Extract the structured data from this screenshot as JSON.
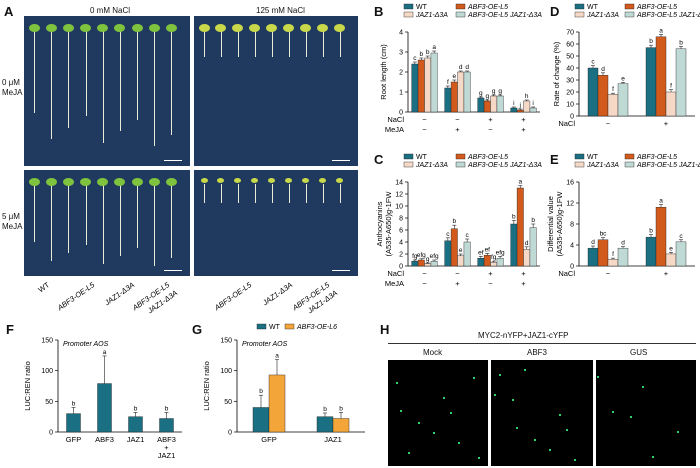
{
  "colors": {
    "wt": "#1b6f83",
    "oe": "#d25a1c",
    "jaz": "#f6d8c7",
    "dbl": "#bfd9d5",
    "orange": "#f3a53a",
    "photo": "#1f3a5e",
    "gfp": "#2bd36a"
  },
  "panel_labels": {
    "a": "A",
    "b": "B",
    "c": "C",
    "d": "D",
    "e": "E",
    "f": "F",
    "g": "G",
    "h": "H"
  },
  "panel_a": {
    "col_headers": [
      "0 mM NaCl",
      "125 mM NaCl"
    ],
    "row_headers": [
      [
        "0 μM",
        "MeJA"
      ],
      [
        "5 μM",
        "MeJA"
      ]
    ],
    "genotypes": [
      "WT",
      "ABF3-OE-L5",
      "JAZ1-Δ3A",
      "ABF3-OE-L5 JAZ1-Δ3A"
    ],
    "genotype_lines": [
      [
        "WT"
      ],
      [
        "ABF3-OE-L5"
      ],
      [
        "JAZ1-Δ3A"
      ],
      [
        "ABF3-OE-L5",
        "JAZ1-Δ3A"
      ]
    ]
  },
  "legend_names": [
    "WT",
    "ABF3-OE-L5",
    "JAZ1-Δ3A",
    "ABF3-OE-L5 JAZ1-Δ3A"
  ],
  "treat_labels": {
    "nacl": "NaCl",
    "meja": "MeJA",
    "minus": "−",
    "plus": "+"
  },
  "chart_data": [
    {
      "id": "B",
      "type": "bar",
      "ylabel": "Root length (cm)",
      "ylim": [
        0,
        4
      ],
      "yticks": [
        0,
        1,
        2,
        3,
        4
      ],
      "categories": [
        "0 NaCl / 0 MeJA",
        "0 NaCl / + MeJA",
        "+ NaCl / 0 MeJA",
        "+ NaCl / + MeJA"
      ],
      "nacl": [
        "−",
        "−",
        "+",
        "+"
      ],
      "meja": [
        "−",
        "+",
        "−",
        "+"
      ],
      "series": [
        {
          "name": "WT",
          "values": [
            2.4,
            1.2,
            0.7,
            0.2
          ],
          "err": [
            0.1,
            0.1,
            0.05,
            0.05
          ],
          "letters": [
            "c",
            "f",
            "g",
            "i"
          ]
        },
        {
          "name": "ABF3-OE-L5",
          "values": [
            2.6,
            1.5,
            0.55,
            0.1
          ],
          "err": [
            0.1,
            0.1,
            0.05,
            0.05
          ],
          "letters": [
            "b",
            "e",
            "g",
            "j"
          ]
        },
        {
          "name": "JAZ1-Δ3A",
          "values": [
            2.7,
            2.0,
            0.8,
            0.55
          ],
          "err": [
            0.1,
            0.05,
            0.05,
            0.05
          ],
          "letters": [
            "b",
            "d",
            "g",
            "h"
          ]
        },
        {
          "name": "ABF3-OE-L5 JAZ1-Δ3A",
          "values": [
            2.95,
            2.0,
            0.8,
            0.2
          ],
          "err": [
            0.1,
            0.05,
            0.05,
            0.05
          ],
          "letters": [
            "a",
            "d",
            "g",
            "i"
          ]
        }
      ]
    },
    {
      "id": "C",
      "type": "bar",
      "ylabel": "Anthocyanins (A535-A650)g-1FW",
      "ylim": [
        0,
        14
      ],
      "yticks": [
        0,
        2,
        4,
        6,
        8,
        10,
        12,
        14
      ],
      "categories": [
        "0 NaCl / 0 MeJA",
        "0 NaCl / + MeJA",
        "+ NaCl / 0 MeJA",
        "+ NaCl / + MeJA"
      ],
      "nacl": [
        "−",
        "−",
        "+",
        "+"
      ],
      "meja": [
        "−",
        "+",
        "−",
        "+"
      ],
      "series": [
        {
          "name": "WT",
          "values": [
            0.8,
            4.2,
            1.3,
            7.0
          ],
          "err": [
            0.2,
            0.5,
            0.3,
            0.6
          ],
          "letters": [
            "fg",
            "c",
            "ef",
            "b"
          ]
        },
        {
          "name": "ABF3-OE-L5",
          "values": [
            1.0,
            6.2,
            1.8,
            13.0
          ],
          "err": [
            0.2,
            0.6,
            0.3,
            0.4
          ],
          "letters": [
            "efg",
            "b",
            "ef",
            "a"
          ]
        },
        {
          "name": "JAZ1-Δ3A",
          "values": [
            0.4,
            1.7,
            0.6,
            2.8
          ],
          "err": [
            0.1,
            0.3,
            0.2,
            0.4
          ],
          "letters": [
            "g",
            "e",
            "fg",
            "d"
          ]
        },
        {
          "name": "ABF3-OE-L5 JAZ1-Δ3A",
          "values": [
            0.8,
            4.0,
            1.3,
            6.4
          ],
          "err": [
            0.2,
            0.5,
            0.3,
            0.6
          ],
          "letters": [
            "efg",
            "c",
            "efg",
            "b"
          ]
        }
      ]
    },
    {
      "id": "D",
      "type": "bar",
      "ylabel": "Rate of change (%)",
      "ylim": [
        0,
        70
      ],
      "yticks": [
        0,
        10,
        20,
        30,
        40,
        50,
        60,
        70
      ],
      "categories": [
        "NaCl −",
        "NaCl +"
      ],
      "nacl": [
        "−",
        "+"
      ],
      "series": [
        {
          "name": "WT",
          "values": [
            40,
            57
          ],
          "err": [
            2,
            2
          ],
          "letters": [
            "c",
            "b"
          ]
        },
        {
          "name": "ABF3-OE-L5",
          "values": [
            34,
            66
          ],
          "err": [
            2,
            2
          ],
          "letters": [
            "d",
            "a"
          ]
        },
        {
          "name": "JAZ1-Δ3A",
          "values": [
            18,
            20
          ],
          "err": [
            1,
            2
          ],
          "letters": [
            "f",
            "f"
          ]
        },
        {
          "name": "ABF3-OE-L5 JAZ1-Δ3A",
          "values": [
            27,
            56
          ],
          "err": [
            1,
            2
          ],
          "letters": [
            "e",
            "b"
          ]
        }
      ]
    },
    {
      "id": "E",
      "type": "bar",
      "ylabel": "Differential value (A535-A650)g-1FW",
      "ylim": [
        0,
        16
      ],
      "yticks": [
        0,
        4,
        8,
        12,
        16
      ],
      "categories": [
        "NaCl −",
        "NaCl +"
      ],
      "nacl": [
        "−",
        "+"
      ],
      "series": [
        {
          "name": "WT",
          "values": [
            3.4,
            5.5
          ],
          "err": [
            0.4,
            0.5
          ],
          "letters": [
            "d",
            "b"
          ]
        },
        {
          "name": "ABF3-OE-L5",
          "values": [
            5.0,
            11.2
          ],
          "err": [
            0.4,
            0.5
          ],
          "letters": [
            "bc",
            "a"
          ]
        },
        {
          "name": "JAZ1-Δ3A",
          "values": [
            1.3,
            2.3
          ],
          "err": [
            0.2,
            0.3
          ],
          "letters": [
            "f",
            "e"
          ]
        },
        {
          "name": "ABF3-OE-L5 JAZ1-Δ3A",
          "values": [
            3.4,
            4.6
          ],
          "err": [
            0.3,
            0.4
          ],
          "letters": [
            "d",
            "c"
          ]
        }
      ]
    },
    {
      "id": "F",
      "type": "bar",
      "ylabel": "LUC:REN ratio",
      "ylim": [
        0,
        150
      ],
      "yticks": [
        0,
        50,
        100,
        150
      ],
      "annotation": "Promoter AOS",
      "categories": [
        "GFP",
        "ABF3",
        "JAZ1",
        "ABF3 + JAZ1"
      ],
      "values": [
        30,
        79,
        25,
        22
      ],
      "err": [
        10,
        45,
        7,
        10
      ],
      "letters": [
        "b",
        "a",
        "b",
        "b"
      ]
    },
    {
      "id": "G",
      "type": "bar",
      "ylabel": "LUC:REN ratio",
      "ylim": [
        0,
        150
      ],
      "yticks": [
        0,
        50,
        100,
        150
      ],
      "annotation": "Promoter AOS",
      "categories": [
        "GFP",
        "JAZ1"
      ],
      "series": [
        {
          "name": "WT",
          "values": [
            40,
            25
          ],
          "err": [
            20,
            6
          ],
          "letters": [
            "b",
            "b"
          ]
        },
        {
          "name": "ABF3-OE-L6",
          "values": [
            93,
            22
          ],
          "err": [
            25,
            10
          ],
          "letters": [
            "a",
            "b"
          ]
        }
      ]
    }
  ],
  "panel_h": {
    "title": "MYC2-nYFP+JAZ1-cYFP",
    "columns": [
      "Mock",
      "ABF3",
      "GUS"
    ]
  }
}
